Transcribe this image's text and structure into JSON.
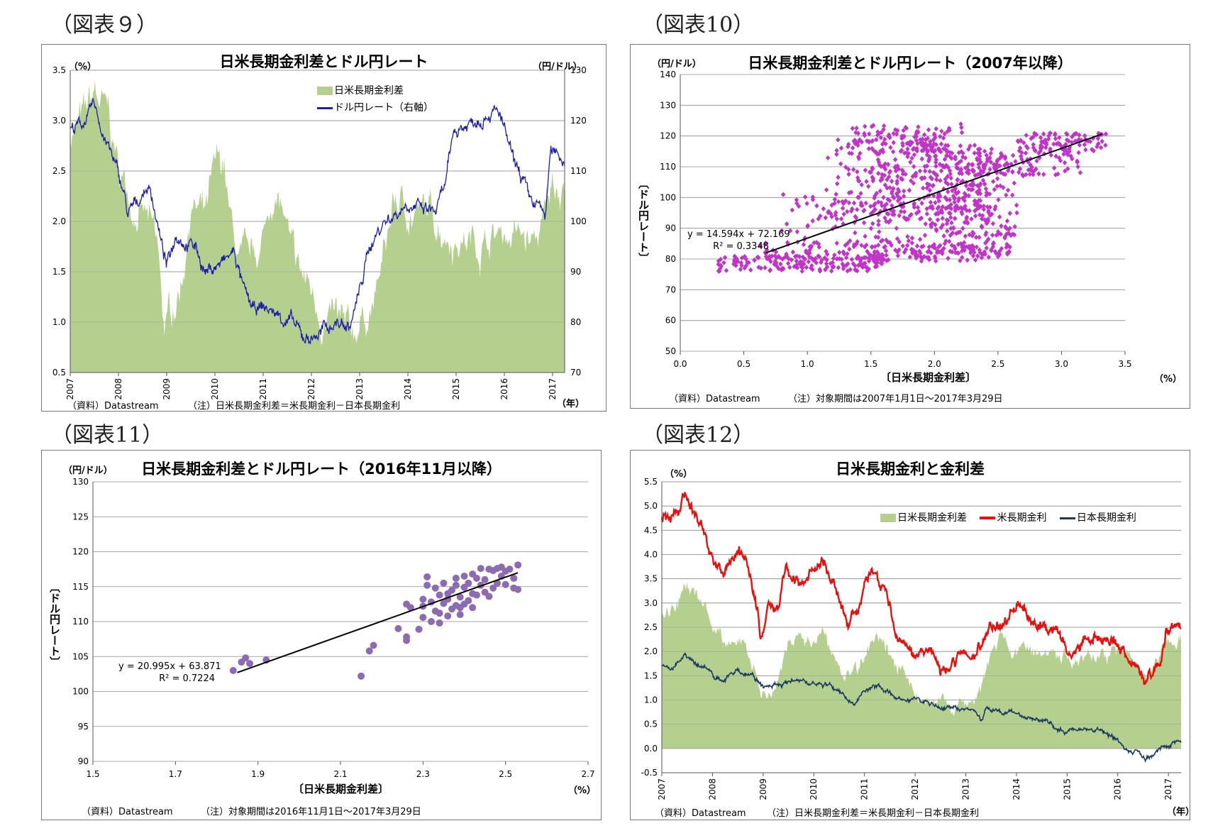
{
  "figure_labels": [
    "（図表９）",
    "（図表10）",
    "（図表11）",
    "（図表12）"
  ],
  "colors": {
    "spread": "#b5cf8e",
    "usdjpy": "#1f1fa8",
    "scatter10": "#c034c8",
    "scatter11": "#8d6bb0",
    "us_yield": "#e8100e",
    "jp_yield": "#1c3a60",
    "trend": "#000000",
    "grid": "#8c8c8c"
  },
  "chart_data": [
    {
      "type": "area",
      "title": "日米長期金利差とドル円レート",
      "left_unit": "（%）",
      "right_unit": "（円/ドル）",
      "x_unit": "（年）",
      "ylim": [
        0.5,
        3.5
      ],
      "y_ticks": [
        "3.5",
        "3.0",
        "2.5",
        "2.0",
        "1.5",
        "1.0",
        "0.5"
      ],
      "y2lim": [
        70,
        130
      ],
      "y2_ticks": [
        "130",
        "120",
        "110",
        "100",
        "90",
        "80",
        "70"
      ],
      "x_ticks": [
        "2007",
        "2008",
        "2009",
        "2010",
        "2011",
        "2012",
        "2013",
        "2014",
        "2015",
        "2016",
        "2017"
      ],
      "grid": true,
      "legend_position": "top-center",
      "series": [
        {
          "name": "日米長期金利差",
          "kind": "area",
          "x": [
            2007.0,
            2007.3,
            2007.5,
            2007.8,
            2008.0,
            2008.3,
            2008.6,
            2008.8,
            2008.95,
            2009.1,
            2009.3,
            2009.5,
            2009.8,
            2010.0,
            2010.2,
            2010.3,
            2010.5,
            2010.7,
            2010.9,
            2011.0,
            2011.2,
            2011.4,
            2011.6,
            2011.7,
            2012.0,
            2012.3,
            2012.5,
            2012.8,
            2013.0,
            2013.3,
            2013.5,
            2013.7,
            2014.0,
            2014.5,
            2015.0,
            2015.5,
            2016.0,
            2016.3,
            2016.6,
            2016.8,
            2017.0,
            2017.25
          ],
          "values": [
            2.9,
            3.0,
            3.25,
            3.0,
            2.5,
            2.2,
            2.0,
            1.7,
            0.9,
            1.1,
            1.4,
            2.2,
            2.0,
            2.45,
            2.55,
            2.0,
            1.6,
            1.5,
            1.7,
            1.8,
            2.3,
            2.1,
            1.6,
            1.5,
            1.3,
            1.0,
            1.0,
            0.8,
            1.0,
            1.2,
            1.6,
            2.2,
            2.1,
            2.05,
            1.85,
            1.8,
            1.9,
            1.85,
            1.75,
            1.95,
            2.35,
            2.45
          ]
        },
        {
          "name": "ドル円レート（右軸）",
          "kind": "line",
          "axis": "right",
          "x": [
            2007.0,
            2007.2,
            2007.4,
            2007.5,
            2007.7,
            2007.9,
            2008.1,
            2008.2,
            2008.4,
            2008.6,
            2008.7,
            2008.9,
            2009.0,
            2009.2,
            2009.4,
            2009.6,
            2009.8,
            2010.0,
            2010.2,
            2010.4,
            2010.6,
            2010.8,
            2011.0,
            2011.2,
            2011.4,
            2011.6,
            2011.8,
            2012.0,
            2012.2,
            2012.5,
            2012.8,
            2013.0,
            2013.2,
            2013.5,
            2013.8,
            2014.0,
            2014.3,
            2014.6,
            2014.8,
            2014.95,
            2015.2,
            2015.5,
            2015.7,
            2015.9,
            2016.0,
            2016.2,
            2016.4,
            2016.5,
            2016.7,
            2016.85,
            2016.95,
            2017.1,
            2017.25
          ],
          "values": [
            118,
            119,
            121,
            123,
            117,
            112,
            106,
            101,
            104,
            107,
            105,
            95,
            91,
            98,
            96,
            95,
            90,
            91,
            92,
            94,
            86,
            82,
            83,
            82,
            81,
            80,
            77,
            77,
            78,
            80,
            79,
            86,
            95,
            100,
            102,
            104,
            102,
            102,
            108,
            118,
            119,
            121,
            122,
            121,
            118,
            111,
            108,
            104,
            103,
            101,
            113,
            114,
            112
          ]
        }
      ],
      "notes": [
        "（資料）Datastream",
        "（注）日米長期金利差＝米長期金利－日本長期金利"
      ]
    },
    {
      "type": "scatter",
      "title": "日米長期金利差とドル円レート（2007年以降）",
      "y_unit": "（円/ドル）",
      "xlabel": "〔日米長期金利差〕",
      "x_unit": "（%）",
      "ylabel": "〔ドル円レート〕",
      "xlim": [
        0.0,
        3.5
      ],
      "x_ticks": [
        "0.0",
        "0.5",
        "1.0",
        "1.5",
        "2.0",
        "2.5",
        "3.0",
        "3.5"
      ],
      "ylim": [
        50,
        140
      ],
      "y_ticks": [
        "140",
        "130",
        "120",
        "110",
        "100",
        "90",
        "80",
        "70",
        "60",
        "50"
      ],
      "grid": true,
      "trendline": {
        "slope": 14.594,
        "intercept": 72.169,
        "x_range": [
          0.67,
          3.32
        ]
      },
      "equation": "y = 14.594x + 72.169",
      "r_squared": "R² = 0.3348",
      "clusters": [
        {
          "cx": 0.95,
          "cy": 78.5,
          "w": 0.65,
          "h": 2.5,
          "n": 160
        },
        {
          "cx": 1.1,
          "cy": 83,
          "w": 0.5,
          "h": 3,
          "n": 70
        },
        {
          "cx": 1.2,
          "cy": 94,
          "w": 0.45,
          "h": 8,
          "n": 50
        },
        {
          "cx": 1.6,
          "cy": 118,
          "w": 0.4,
          "h": 3,
          "n": 45
        },
        {
          "cx": 1.8,
          "cy": 119,
          "w": 0.45,
          "h": 5,
          "n": 90
        },
        {
          "cx": 1.75,
          "cy": 104,
          "w": 0.6,
          "h": 12,
          "n": 160
        },
        {
          "cx": 2.0,
          "cy": 104,
          "w": 0.45,
          "h": 12,
          "n": 140
        },
        {
          "cx": 2.05,
          "cy": 90,
          "w": 0.55,
          "h": 8,
          "n": 120
        },
        {
          "cx": 1.9,
          "cy": 82,
          "w": 0.5,
          "h": 3,
          "n": 70
        },
        {
          "cx": 2.2,
          "cy": 82,
          "w": 0.4,
          "h": 2,
          "n": 50
        },
        {
          "cx": 2.3,
          "cy": 99,
          "w": 0.35,
          "h": 12,
          "n": 130
        },
        {
          "cx": 2.25,
          "cy": 112,
          "w": 0.3,
          "h": 5,
          "n": 50
        },
        {
          "cx": 2.7,
          "cy": 111,
          "w": 0.45,
          "h": 4,
          "n": 80
        },
        {
          "cx": 3.0,
          "cy": 118,
          "w": 0.35,
          "h": 3,
          "n": 100
        }
      ],
      "notes": [
        "（資料）Datastream",
        "（注）対象期間は2007年1月1日～2017年3月29日"
      ]
    },
    {
      "type": "scatter",
      "title": "日米長期金利差とドル円レート（2016年11月以降）",
      "y_unit": "（円/ドル）",
      "xlabel": "〔日米長期金利差〕",
      "x_unit": "（%）",
      "ylabel": "〔ドル円レート〕",
      "xlim": [
        1.5,
        2.7
      ],
      "x_ticks": [
        "1.5",
        "1.7",
        "1.9",
        "2.1",
        "2.3",
        "2.5",
        "2.7"
      ],
      "ylim": [
        90,
        130
      ],
      "y_ticks": [
        "130",
        "125",
        "120",
        "115",
        "110",
        "105",
        "100",
        "95",
        "90"
      ],
      "grid": true,
      "trendline": {
        "slope": 20.995,
        "intercept": 63.871,
        "x_range": [
          1.85,
          2.53
        ]
      },
      "equation": "y = 20.995x + 63.871",
      "r_squared": "R² = 0.7224",
      "points": [
        [
          1.84,
          103.0
        ],
        [
          1.86,
          104.2
        ],
        [
          1.87,
          104.8
        ],
        [
          1.88,
          104.0
        ],
        [
          1.92,
          104.5
        ],
        [
          2.15,
          102.2
        ],
        [
          2.17,
          105.8
        ],
        [
          2.18,
          106.6
        ],
        [
          2.24,
          109.0
        ],
        [
          2.26,
          107.3
        ],
        [
          2.26,
          107.8
        ],
        [
          2.26,
          112.5
        ],
        [
          2.27,
          112.0
        ],
        [
          2.29,
          108.9
        ],
        [
          2.3,
          110.6
        ],
        [
          2.3,
          112.2
        ],
        [
          2.3,
          113.2
        ],
        [
          2.31,
          116.4
        ],
        [
          2.31,
          115.2
        ],
        [
          2.32,
          110.0
        ],
        [
          2.32,
          112.8
        ],
        [
          2.33,
          111.5
        ],
        [
          2.33,
          114.8
        ],
        [
          2.34,
          113.8
        ],
        [
          2.34,
          111.2
        ],
        [
          2.35,
          112.6
        ],
        [
          2.35,
          115.5
        ],
        [
          2.36,
          110.8
        ],
        [
          2.36,
          113.2
        ],
        [
          2.36,
          114.0
        ],
        [
          2.37,
          111.8
        ],
        [
          2.37,
          114.5
        ],
        [
          2.38,
          112.3
        ],
        [
          2.38,
          115.2
        ],
        [
          2.38,
          116.2
        ],
        [
          2.39,
          111.0
        ],
        [
          2.39,
          113.5
        ],
        [
          2.4,
          112.5
        ],
        [
          2.4,
          114.9
        ],
        [
          2.4,
          116.5
        ],
        [
          2.41,
          113.0
        ],
        [
          2.41,
          115.5
        ],
        [
          2.42,
          112.0
        ],
        [
          2.42,
          114.0
        ],
        [
          2.42,
          116.8
        ],
        [
          2.43,
          113.8
        ],
        [
          2.44,
          115.2
        ],
        [
          2.44,
          117.6
        ],
        [
          2.45,
          114.2
        ],
        [
          2.45,
          116.0
        ],
        [
          2.46,
          113.6
        ],
        [
          2.46,
          117.5
        ],
        [
          2.47,
          114.8
        ],
        [
          2.47,
          117.3
        ],
        [
          2.48,
          115.5
        ],
        [
          2.48,
          117.6
        ],
        [
          2.49,
          116.5
        ],
        [
          2.49,
          117.8
        ],
        [
          2.5,
          115.3
        ],
        [
          2.5,
          117.2
        ],
        [
          2.51,
          117.5
        ],
        [
          2.52,
          116.2
        ],
        [
          2.52,
          114.8
        ],
        [
          2.53,
          118.1
        ],
        [
          2.53,
          114.6
        ],
        [
          2.39,
          112.0
        ],
        [
          2.34,
          109.8
        ],
        [
          2.43,
          116.2
        ]
      ],
      "notes": [
        "（資料）Datastream",
        "（注）対象期間は2016年11月1日～2017年3月29日"
      ]
    },
    {
      "type": "line",
      "title": "日米長期金利と金利差",
      "y_unit": "（%）",
      "x_unit": "（年）",
      "ylim": [
        -0.5,
        5.5
      ],
      "y_ticks": [
        "5.5",
        "5.0",
        "4.5",
        "4.0",
        "3.5",
        "3.0",
        "2.5",
        "2.0",
        "1.5",
        "1.0",
        "0.5",
        "0.0",
        "-0.5"
      ],
      "x_ticks": [
        "2007",
        "2008",
        "2009",
        "2010",
        "2011",
        "2012",
        "2013",
        "2014",
        "2015",
        "2016",
        "2017"
      ],
      "grid": true,
      "legend_position": "top-right",
      "series": [
        {
          "name": "日米長期金利差",
          "kind": "area",
          "x": [
            2007.0,
            2007.3,
            2007.5,
            2007.8,
            2008.0,
            2008.3,
            2008.6,
            2008.8,
            2008.95,
            2009.1,
            2009.3,
            2009.5,
            2009.8,
            2010.0,
            2010.2,
            2010.3,
            2010.5,
            2010.7,
            2010.9,
            2011.0,
            2011.2,
            2011.4,
            2011.6,
            2011.7,
            2012.0,
            2012.3,
            2012.5,
            2012.8,
            2013.0,
            2013.3,
            2013.5,
            2013.7,
            2014.0,
            2014.5,
            2015.0,
            2015.5,
            2016.0,
            2016.3,
            2016.6,
            2016.8,
            2017.0,
            2017.25
          ],
          "values": [
            2.9,
            3.0,
            3.25,
            3.0,
            2.5,
            2.2,
            2.0,
            1.7,
            0.9,
            1.1,
            1.4,
            2.2,
            2.0,
            2.45,
            2.55,
            2.0,
            1.6,
            1.5,
            1.7,
            1.8,
            2.3,
            2.1,
            1.6,
            1.5,
            1.3,
            1.0,
            1.0,
            0.8,
            1.0,
            1.2,
            1.6,
            2.2,
            2.1,
            2.05,
            1.85,
            1.8,
            1.9,
            1.85,
            1.75,
            1.95,
            2.35,
            2.45
          ]
        },
        {
          "name": "米長期金利",
          "kind": "line",
          "x": [
            2007.0,
            2007.2,
            2007.45,
            2007.6,
            2007.8,
            2008.0,
            2008.2,
            2008.5,
            2008.7,
            2008.9,
            2008.95,
            2009.1,
            2009.3,
            2009.45,
            2009.7,
            2010.0,
            2010.2,
            2010.4,
            2010.7,
            2010.9,
            2011.0,
            2011.1,
            2011.3,
            2011.5,
            2011.6,
            2011.8,
            2012.0,
            2012.3,
            2012.5,
            2012.8,
            2013.0,
            2013.2,
            2013.5,
            2013.8,
            2014.0,
            2014.3,
            2014.6,
            2014.9,
            2015.1,
            2015.4,
            2015.6,
            2015.9,
            2016.0,
            2016.3,
            2016.5,
            2016.7,
            2016.85,
            2016.95,
            2017.1,
            2017.25
          ],
          "values": [
            4.7,
            4.8,
            5.2,
            4.9,
            4.5,
            4.0,
            3.6,
            4.1,
            3.8,
            2.8,
            2.2,
            2.9,
            2.9,
            3.8,
            3.4,
            3.7,
            3.8,
            3.3,
            2.6,
            2.9,
            3.3,
            3.6,
            3.4,
            3.0,
            2.2,
            2.0,
            1.9,
            2.1,
            1.6,
            1.7,
            1.9,
            1.9,
            2.5,
            2.6,
            3.0,
            2.7,
            2.5,
            2.2,
            2.0,
            2.3,
            2.2,
            2.25,
            2.1,
            1.8,
            1.5,
            1.6,
            1.8,
            2.4,
            2.5,
            2.4
          ]
        },
        {
          "name": "日本長期金利",
          "kind": "line",
          "x": [
            2007.0,
            2007.2,
            2007.45,
            2007.6,
            2007.9,
            2008.2,
            2008.5,
            2008.8,
            2009.0,
            2009.3,
            2009.6,
            2010.0,
            2010.3,
            2010.6,
            2010.8,
            2011.0,
            2011.3,
            2011.6,
            2012.0,
            2012.5,
            2013.0,
            2013.3,
            2013.4,
            2013.6,
            2014.0,
            2014.5,
            2015.0,
            2015.3,
            2015.6,
            2016.0,
            2016.2,
            2016.4,
            2016.55,
            2016.8,
            2017.0,
            2017.25
          ],
          "values": [
            1.7,
            1.65,
            1.9,
            1.75,
            1.6,
            1.4,
            1.6,
            1.5,
            1.25,
            1.35,
            1.4,
            1.35,
            1.3,
            1.1,
            0.9,
            1.2,
            1.25,
            1.05,
            1.0,
            0.85,
            0.8,
            0.6,
            0.85,
            0.8,
            0.7,
            0.55,
            0.35,
            0.4,
            0.4,
            0.2,
            -0.05,
            -0.1,
            -0.25,
            -0.05,
            0.08,
            0.07
          ]
        }
      ],
      "notes": [
        "（資料）Datastream",
        "（注）日米長期金利差＝米長期金利－日本長期金利"
      ]
    }
  ]
}
